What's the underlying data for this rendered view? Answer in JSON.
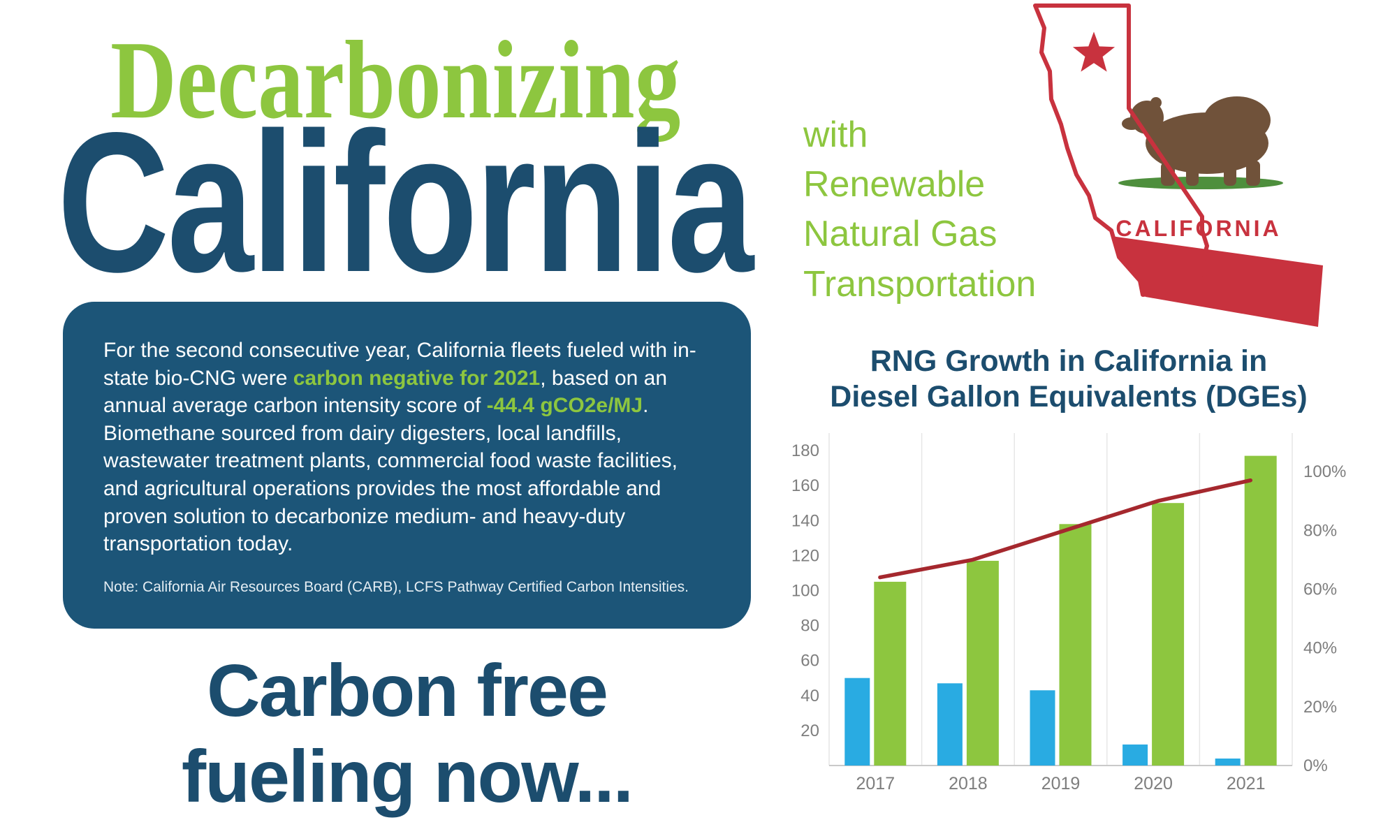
{
  "header": {
    "title_line1": "Decarbonizing",
    "title_line2": "California",
    "subtitle_lines": [
      "with",
      "Renewable",
      "Natural Gas",
      "Transportation"
    ]
  },
  "flag": {
    "label": "CALIFORNIA"
  },
  "info_box": {
    "segments": [
      {
        "text": "For the second consecutive year, California fleets fueled with in-state bio-CNG were ",
        "highlight": false
      },
      {
        "text": "carbon negative for 2021",
        "highlight": true
      },
      {
        "text": ", based on an annual average carbon intensity score of ",
        "highlight": false
      },
      {
        "text": " -44.4 gCO2e/MJ",
        "highlight": true
      },
      {
        "text": ".  Biomethane sourced from dairy digesters, local landfills, wastewater treatment plants, commercial food waste facilities, and agricultural operations provides the most affordable and proven solution to decarbonize medium- and heavy-duty transportation today.",
        "highlight": false
      }
    ],
    "note": "Note: California Air Resources Board (CARB), LCFS Pathway Certified Carbon Intensities."
  },
  "tagline": {
    "line1": "Carbon free",
    "line2": "fueling now..."
  },
  "colors": {
    "accent_green": "#8dc63f",
    "headline_navy": "#1c4d6e",
    "box_navy": "#1c5578",
    "flag_red": "#c8323e",
    "bear_brown": "#70523a",
    "axis_gray": "#7e7e7e"
  },
  "chart_data": {
    "type": "bar",
    "title_lines": [
      "RNG Growth in California in",
      "Diesel Gallon Equivalents (DGEs)"
    ],
    "categories": [
      "2017",
      "2018",
      "2019",
      "2020",
      "2021"
    ],
    "bar_series": [
      {
        "id": "blue",
        "color": "#29abe2",
        "values": [
          50,
          47,
          43,
          12,
          4
        ]
      },
      {
        "id": "green",
        "color": "#8dc63f",
        "values": [
          105,
          117,
          138,
          150,
          177
        ]
      }
    ],
    "line_series": {
      "id": "red",
      "color": "#a5282e",
      "axis": "right",
      "values_percent": [
        64,
        70,
        80,
        90,
        97
      ]
    },
    "left_axis": {
      "min": 0,
      "max": 190,
      "ticks": [
        20,
        40,
        60,
        80,
        100,
        120,
        140,
        160,
        180
      ]
    },
    "right_axis": {
      "tick_labels": [
        "0%",
        "20%",
        "40%",
        "60%",
        "80%",
        "100%"
      ],
      "tick_percents": [
        0,
        20,
        40,
        60,
        80,
        100
      ],
      "percent_to_left_units": 1.68
    },
    "grid": {
      "vertical": true,
      "color": "#e6e6e6"
    },
    "legend": "none"
  }
}
